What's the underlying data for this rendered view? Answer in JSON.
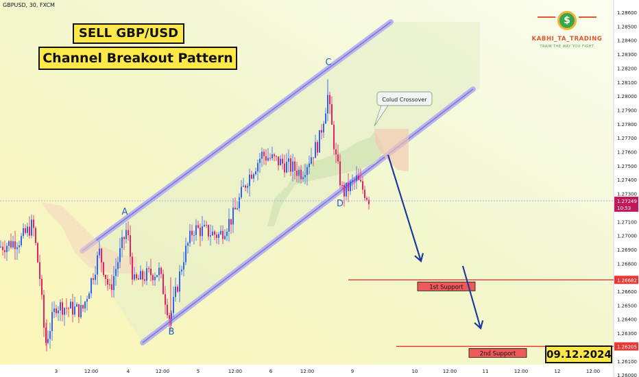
{
  "symbol_header": "GBPUSD, 30, FXCM",
  "title_line1": "SELL GBP/USD",
  "title_line2": "Channel Breakout Pattern",
  "brand": {
    "name": "KABHI_TA_TRADING",
    "tagline": "TRAIN THE WAY YOU FIGHT",
    "coin_symbol": "$",
    "color": "#e8542a",
    "coin_color": "#3aa64a"
  },
  "date_label": "09.12.2024",
  "chart_data": {
    "type": "candlestick",
    "ylim": [
      1.2585,
      1.2865
    ],
    "y_ticks": [
      "1.28600",
      "1.28500",
      "1.28400",
      "1.28300",
      "1.28200",
      "1.28100",
      "1.28000",
      "1.27900",
      "1.27800",
      "1.27700",
      "1.27600",
      "1.27500",
      "1.27400",
      "1.27300",
      "1.27100",
      "1.27000",
      "1.26900",
      "1.26800",
      "1.26600",
      "1.26500",
      "1.26400",
      "1.26300",
      "1.26100",
      "1.26000"
    ],
    "x_ticks": [
      "3",
      "12:00",
      "4",
      "12:00",
      "5",
      "12:00",
      "6",
      "12:00",
      "9",
      "10",
      "12:00",
      "11",
      "12:00",
      "12",
      "12:00"
    ],
    "last_price": {
      "value": "1.27249",
      "countdown": "10:53",
      "color": "#c2185b"
    },
    "price_labels": [
      {
        "value": "1.26682",
        "color": "#e53935"
      },
      {
        "value": "1.26205",
        "color": "#e53935"
      }
    ],
    "points": [
      {
        "label": "A",
        "price": 1.2704
      },
      {
        "label": "B",
        "price": 1.2632
      },
      {
        "label": "C",
        "price": 1.2812
      },
      {
        "label": "D",
        "price": 1.2718
      }
    ],
    "supports": [
      {
        "label": "1st Support",
        "price": 1.26682
      },
      {
        "label": "2nd Support",
        "price": 1.26205
      }
    ],
    "annotation": "Colud Crossover",
    "candle_colors": {
      "up": "#2962ff",
      "down": "#e91e63"
    }
  }
}
